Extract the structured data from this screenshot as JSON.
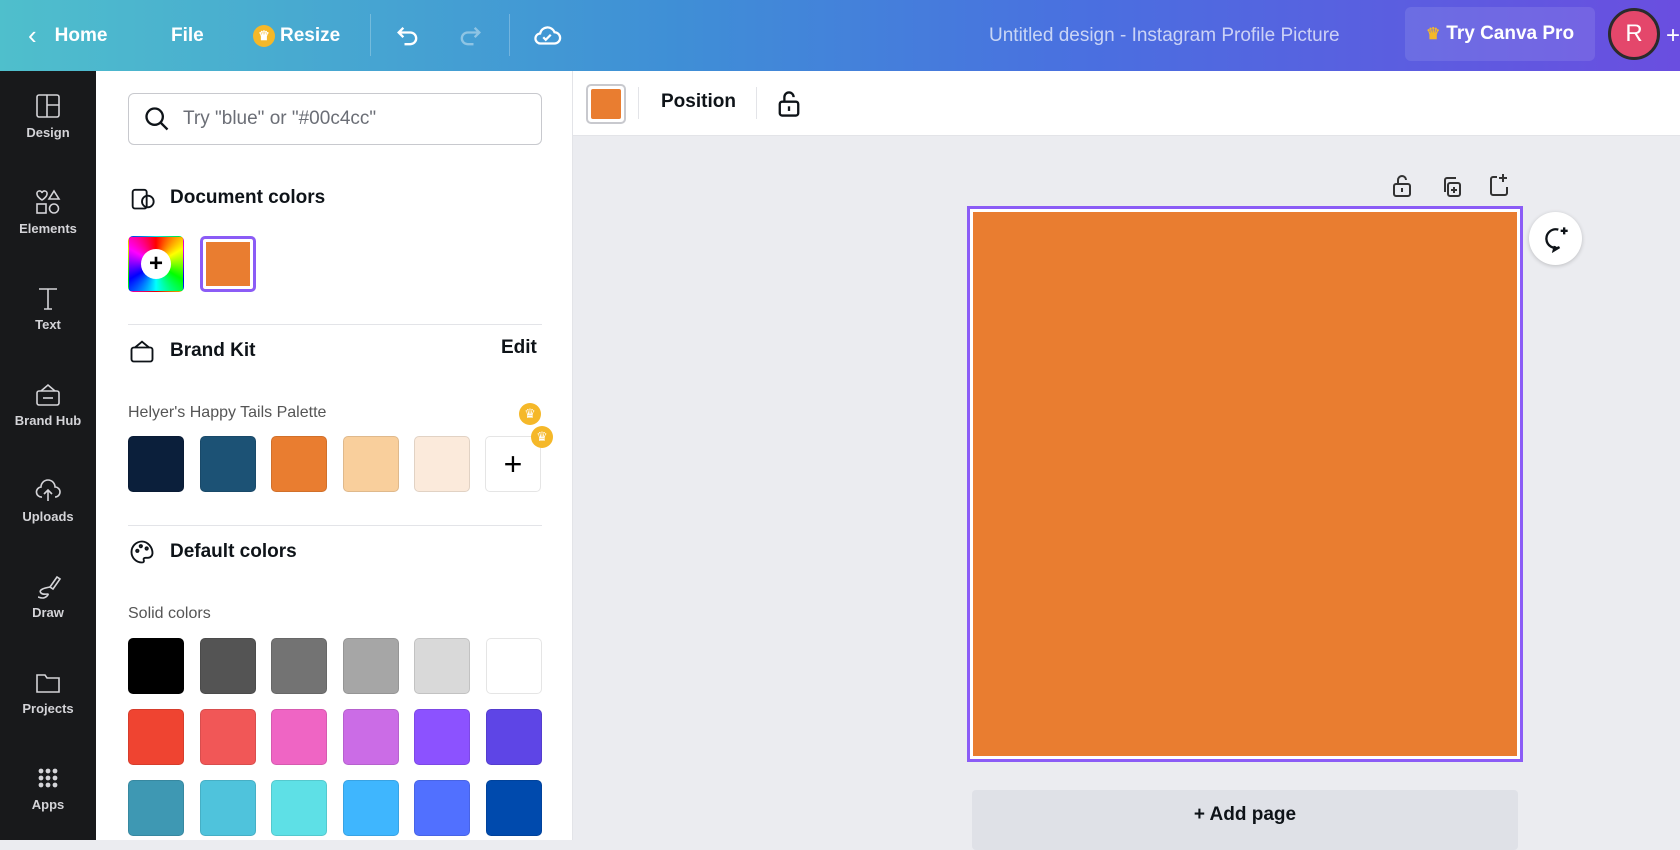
{
  "topbar": {
    "home": "Home",
    "file": "File",
    "resize": "Resize",
    "title": "Untitled design - Instagram Profile Picture",
    "pro": "Try Canva Pro",
    "avatar": "R",
    "plus": "+"
  },
  "rail": [
    {
      "label": "Design",
      "icon": "layout-icon"
    },
    {
      "label": "Elements",
      "icon": "shapes-icon"
    },
    {
      "label": "Text",
      "icon": "text-icon"
    },
    {
      "label": "Brand Hub",
      "icon": "brand-icon"
    },
    {
      "label": "Uploads",
      "icon": "upload-cloud-icon"
    },
    {
      "label": "Draw",
      "icon": "pen-icon"
    },
    {
      "label": "Projects",
      "icon": "folder-icon"
    },
    {
      "label": "Apps",
      "icon": "apps-grid-icon"
    }
  ],
  "panel": {
    "search_placeholder": "Try \"blue\" or \"#00c4cc\"",
    "document_colors": {
      "title": "Document colors",
      "colors": [
        "#e97d30"
      ]
    },
    "brand_kit": {
      "title": "Brand Kit",
      "edit": "Edit",
      "palette_name": "Helyer's Happy Tails Palette",
      "colors": [
        "#0b1f3b",
        "#1c5275",
        "#e97d30",
        "#f9cf9c",
        "#fbeadb"
      ]
    },
    "default_colors": {
      "title": "Default colors",
      "solid_label": "Solid colors",
      "colors": [
        "#000000",
        "#545454",
        "#737373",
        "#a6a6a6",
        "#d9d9d9",
        "#ffffff",
        "#ef4431",
        "#f15757",
        "#ef65c4",
        "#cb6ce6",
        "#8c52ff",
        "#5e45e6",
        "#3e98b3",
        "#4fc3dc",
        "#5ee0e6",
        "#3fb6fe",
        "#5170ff",
        "#004aad"
      ]
    }
  },
  "toolbar": {
    "swatch": "#e97d30",
    "position": "Position"
  },
  "canvas": {
    "fill": "#e97d30",
    "add_page": "+ Add page"
  },
  "accent": "#8b5cf6"
}
